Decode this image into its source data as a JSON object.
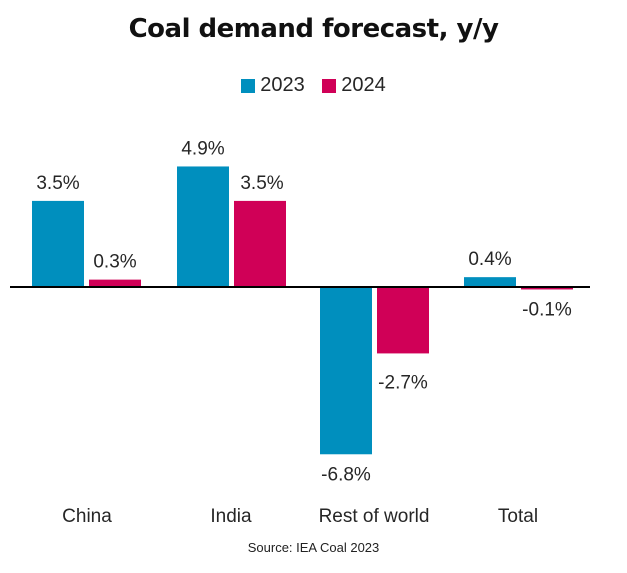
{
  "chart_data": {
    "type": "bar",
    "title": "Coal demand forecast, y/y",
    "categories": [
      "China",
      "India",
      "Rest of world",
      "Total"
    ],
    "series": [
      {
        "name": "2023",
        "color": "#008FBE",
        "values": [
          3.5,
          4.9,
          -6.8,
          0.4
        ],
        "labels": [
          "3.5%",
          "4.9%",
          "-6.8%",
          "0.4%"
        ]
      },
      {
        "name": "2024",
        "color": "#D00057",
        "values": [
          0.3,
          3.5,
          -2.7,
          -0.1
        ],
        "labels": [
          "0.3%",
          "3.5%",
          "-2.7%",
          "-0.1%"
        ]
      }
    ],
    "xlabel": "",
    "ylabel": "",
    "ylim": [
      -6.8,
      4.9
    ],
    "grid": false,
    "legend_position": "top-center",
    "source": "Source: IEA Coal 2023"
  }
}
